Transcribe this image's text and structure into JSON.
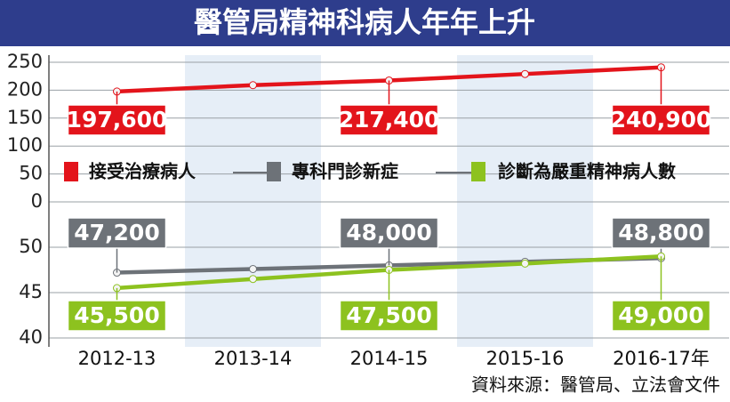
{
  "chart_data": {
    "type": "line",
    "title": "醫管局精神科病人年年上升",
    "source": "資料來源：醫管局、立法會文件",
    "categories": [
      "2012-13",
      "2013-14",
      "2014-15",
      "2015-16",
      "2016-17年"
    ],
    "ylim": [
      0,
      250
    ],
    "yticks": [
      0,
      50,
      100,
      150,
      200,
      250
    ],
    "y2lim": [
      40,
      50
    ],
    "y2ticks": [
      40,
      45,
      50
    ],
    "grid": true,
    "series": [
      {
        "name": "接受治療病人",
        "color": "#e3141b",
        "values": [
          197.6,
          209,
          217.4,
          229,
          240.9
        ],
        "value_labels": [
          "197,600",
          null,
          "217,400",
          null,
          "240,900"
        ]
      },
      {
        "name": "專科門診新症",
        "color": "#6d7278",
        "axis": "y2",
        "values": [
          47.2,
          47.6,
          48.0,
          48.4,
          48.8
        ],
        "value_labels": [
          "47,200",
          null,
          "48,000",
          null,
          "48,800"
        ]
      },
      {
        "name": "診斷為嚴重精神病人數",
        "color": "#8dc21f",
        "axis": "y2",
        "values": [
          45.5,
          46.5,
          47.5,
          48.2,
          49.0
        ],
        "value_labels": [
          "45,500",
          null,
          "47,500",
          null,
          "49,000"
        ]
      }
    ]
  }
}
